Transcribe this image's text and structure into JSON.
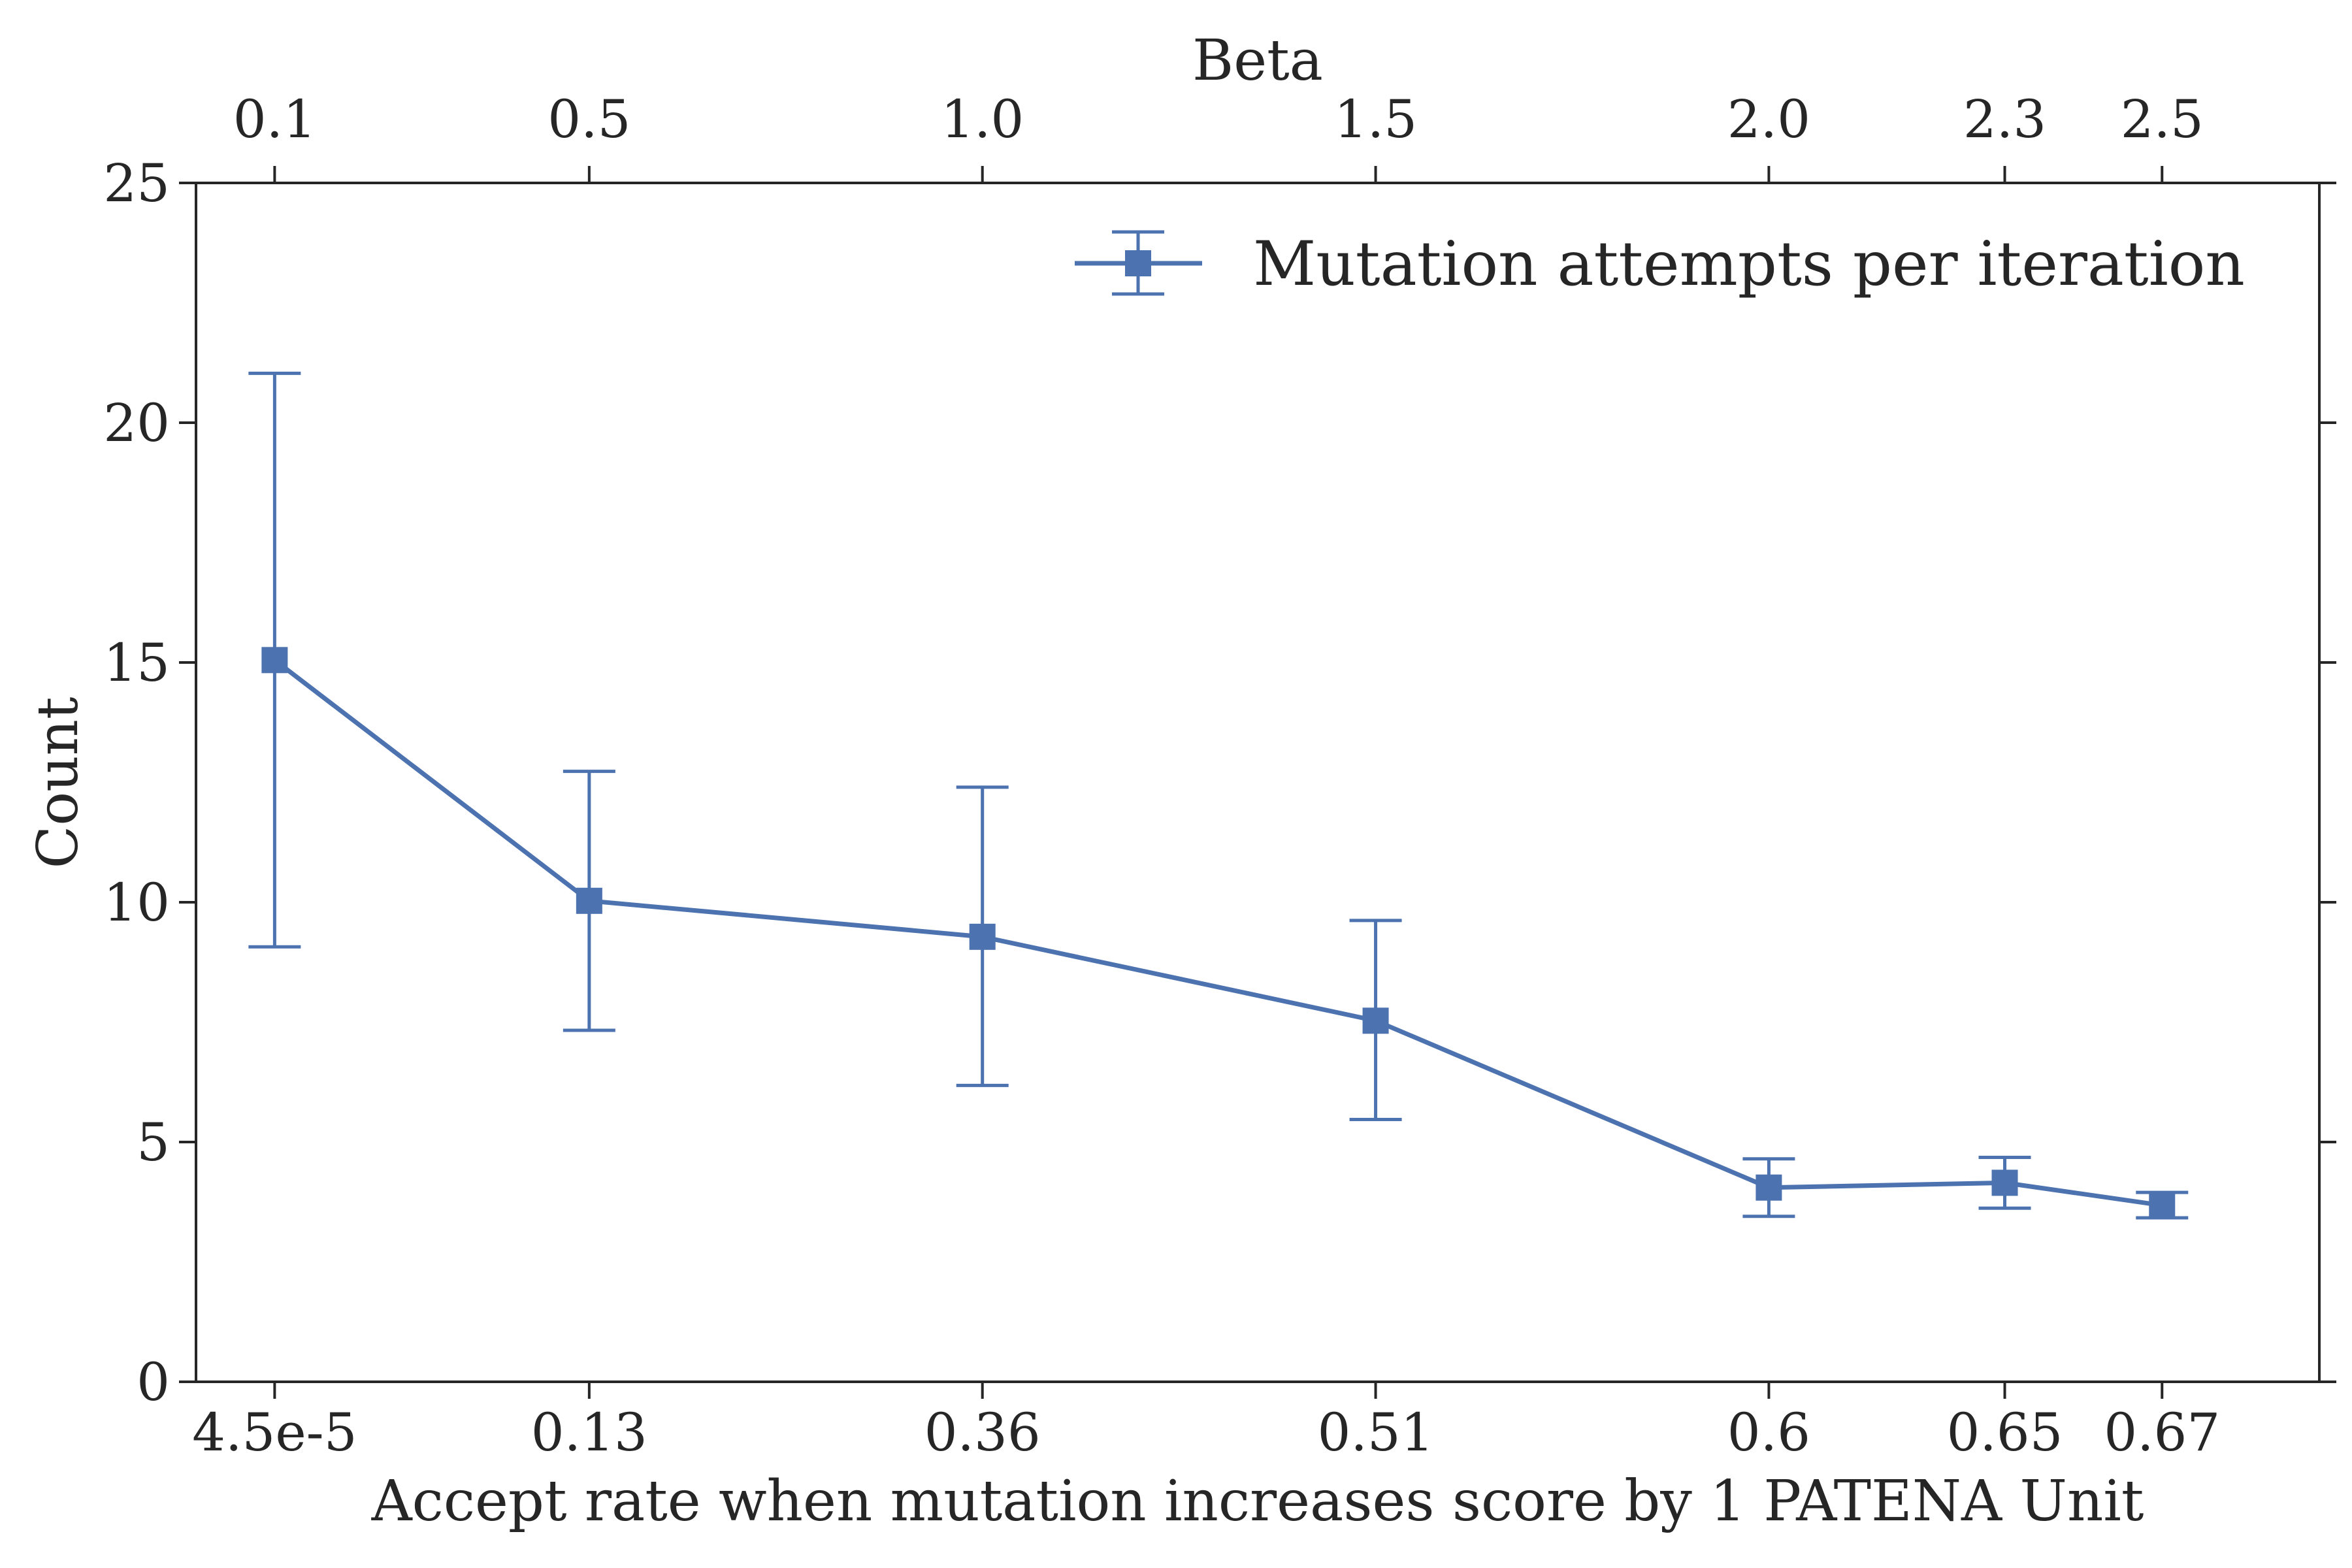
{
  "chart_data": {
    "type": "line",
    "x": [
      0.1,
      0.5,
      1.0,
      1.5,
      2.0,
      2.3,
      2.5
    ],
    "top_axis": {
      "label": "Beta",
      "ticks": [
        "0.1",
        "0.5",
        "1.0",
        "1.5",
        "2.0",
        "2.3",
        "2.5"
      ]
    },
    "bottom_axis": {
      "label": "Accept rate when mutation increases score by 1 PATENA Unit",
      "ticks": [
        "4.5e-5",
        "0.13",
        "0.36",
        "0.51",
        "0.6",
        "0.65",
        "0.67"
      ]
    },
    "xlim": [
      0.0,
      2.7
    ],
    "ylabel": "Count",
    "ylim": [
      0,
      25
    ],
    "yticks": [
      0,
      5,
      10,
      15,
      20,
      25
    ],
    "series": [
      {
        "name": "Mutation attempts per iteration",
        "color": "#4c72b0",
        "marker": "square",
        "values": [
          15.05,
          10.03,
          9.28,
          7.53,
          4.05,
          4.15,
          3.68
        ],
        "err_low": [
          9.07,
          7.33,
          6.18,
          5.47,
          3.45,
          3.62,
          3.42
        ],
        "err_high": [
          21.03,
          12.73,
          12.4,
          9.62,
          4.65,
          4.68,
          3.95
        ]
      }
    ],
    "legend": "top-right",
    "grid": false
  }
}
